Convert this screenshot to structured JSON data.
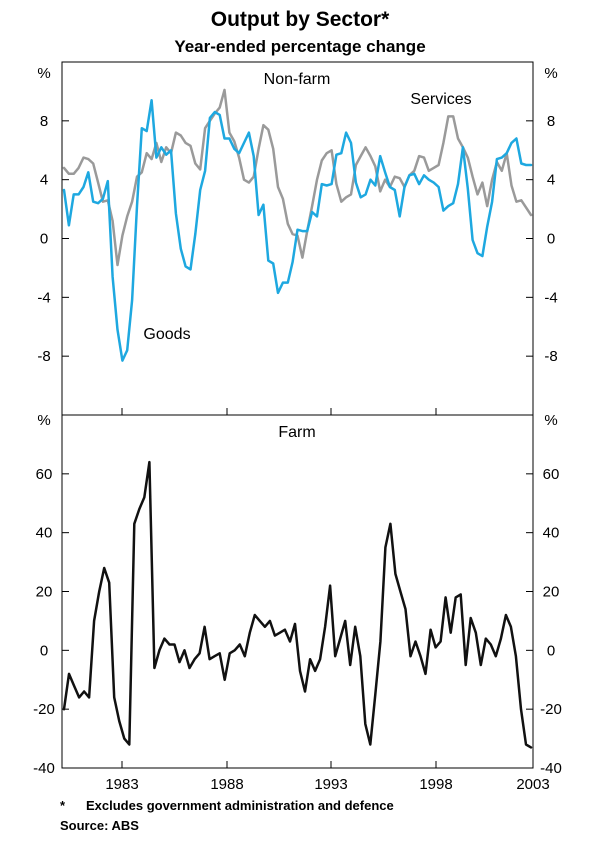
{
  "chart_data": {
    "title": "Output by Sector*",
    "subtitle": "Year-ended percentage change",
    "footnote_marker": "*",
    "footnote_text": "Excludes government administration and defence",
    "source": "Source: ABS",
    "x_ticks": [
      "1983",
      "1988",
      "1993",
      "1998",
      "2003"
    ],
    "panels": [
      {
        "title": "Non-farm",
        "type": "line",
        "unit": "%",
        "ylim": [
          -12,
          12
        ],
        "y_ticks": [
          "8",
          "4",
          "0",
          "-4",
          "-8"
        ],
        "y_tick_values": [
          8,
          4,
          0,
          -4,
          -8
        ],
        "series": [
          {
            "name": "Services",
            "color": "#9a9a9a",
            "values": [
              4.8,
              4.4,
              4.4,
              4.8,
              5.5,
              5.4,
              5.1,
              3.8,
              2.5,
              2.6,
              1.2,
              -1.8,
              0.2,
              1.5,
              2.5,
              4.2,
              4.5,
              5.8,
              5.4,
              6.5,
              5.2,
              6.2,
              5.8,
              7.2,
              7.0,
              6.5,
              6.3,
              5.1,
              4.7,
              7.5,
              8.0,
              8.5,
              8.9,
              10.1,
              7.2,
              6.6,
              5.5,
              4.0,
              3.8,
              4.2,
              6.1,
              7.7,
              7.4,
              6.1,
              3.5,
              2.7,
              1.0,
              0.3,
              0.2,
              -1.3,
              0.5,
              2.2,
              4.0,
              5.3,
              5.8,
              6.0,
              3.7,
              2.5,
              2.8,
              3.0,
              5.0,
              5.6,
              6.2,
              5.6,
              4.9,
              3.2,
              4.0,
              3.5,
              4.2,
              4.1,
              3.5,
              4.3,
              4.6,
              5.6,
              5.5,
              4.6,
              4.8,
              5.0,
              6.5,
              8.3,
              8.3,
              6.8,
              6.2,
              5.5,
              4.2,
              3.0,
              3.8,
              2.2,
              4.0,
              5.2,
              4.6,
              5.8,
              3.6,
              2.5,
              2.6,
              2.1,
              1.6
            ]
          },
          {
            "name": "Goods",
            "color": "#1ea8e0",
            "values": [
              3.3,
              0.9,
              3.0,
              3.0,
              3.5,
              4.5,
              2.5,
              2.4,
              2.7,
              3.9,
              -2.6,
              -6.2,
              -8.3,
              -7.6,
              -4.2,
              2.2,
              7.5,
              7.3,
              9.4,
              5.5,
              6.2,
              5.7,
              6.0,
              1.7,
              -0.7,
              -1.9,
              -2.1,
              0.3,
              3.3,
              4.6,
              8.2,
              8.6,
              8.4,
              6.8,
              6.8,
              6.1,
              5.8,
              6.5,
              7.2,
              5.6,
              1.6,
              2.3,
              -1.5,
              -1.7,
              -3.7,
              -3.0,
              -3.0,
              -1.6,
              0.6,
              0.5,
              0.5,
              1.8,
              1.5,
              3.7,
              3.6,
              3.7,
              5.7,
              5.8,
              7.2,
              6.5,
              3.8,
              2.8,
              3.0,
              4.0,
              3.6,
              5.6,
              4.5,
              3.5,
              3.3,
              1.5,
              3.5,
              4.3,
              4.4,
              3.7,
              4.3,
              4.0,
              3.8,
              3.5,
              1.9,
              2.2,
              2.4,
              3.7,
              6.2,
              3.4,
              -0.1,
              -1.0,
              -1.2,
              0.8,
              2.5,
              5.4,
              5.5,
              5.8,
              6.5,
              6.8,
              5.1,
              5.0,
              5.0
            ]
          }
        ],
        "annotations": [
          "Services",
          "Goods"
        ]
      },
      {
        "title": "Farm",
        "type": "line",
        "unit": "%",
        "ylim": [
          -40,
          80
        ],
        "y_ticks": [
          "60",
          "40",
          "20",
          "0",
          "-20",
          "-40"
        ],
        "y_tick_values": [
          60,
          40,
          20,
          0,
          -20,
          -40
        ],
        "series": [
          {
            "name": "Farm",
            "color": "#111111",
            "values": [
              -20,
              -8,
              -12,
              -16,
              -14,
              -16,
              10,
              20,
              28,
              23,
              -16,
              -24,
              -30,
              -32,
              43,
              48,
              52,
              64,
              -6,
              0,
              4,
              2,
              2,
              -4,
              0,
              -6,
              -3,
              -1,
              8,
              -3,
              -2,
              -1,
              -10,
              -1,
              0,
              2,
              -2,
              6,
              12,
              10,
              8,
              10,
              5,
              6,
              7,
              3,
              9,
              -7,
              -14,
              -3,
              -7,
              -3,
              8,
              22,
              -2,
              4,
              10,
              -5,
              8,
              -2,
              -25,
              -32,
              -15,
              3,
              35,
              43,
              26,
              20,
              14,
              -2,
              3,
              -2,
              -8,
              7,
              1,
              3,
              18,
              6,
              18,
              19,
              -5,
              11,
              6,
              -5,
              4,
              2,
              -2,
              4,
              12,
              8,
              -2,
              -20,
              -32,
              -33
            ]
          }
        ]
      }
    ]
  }
}
